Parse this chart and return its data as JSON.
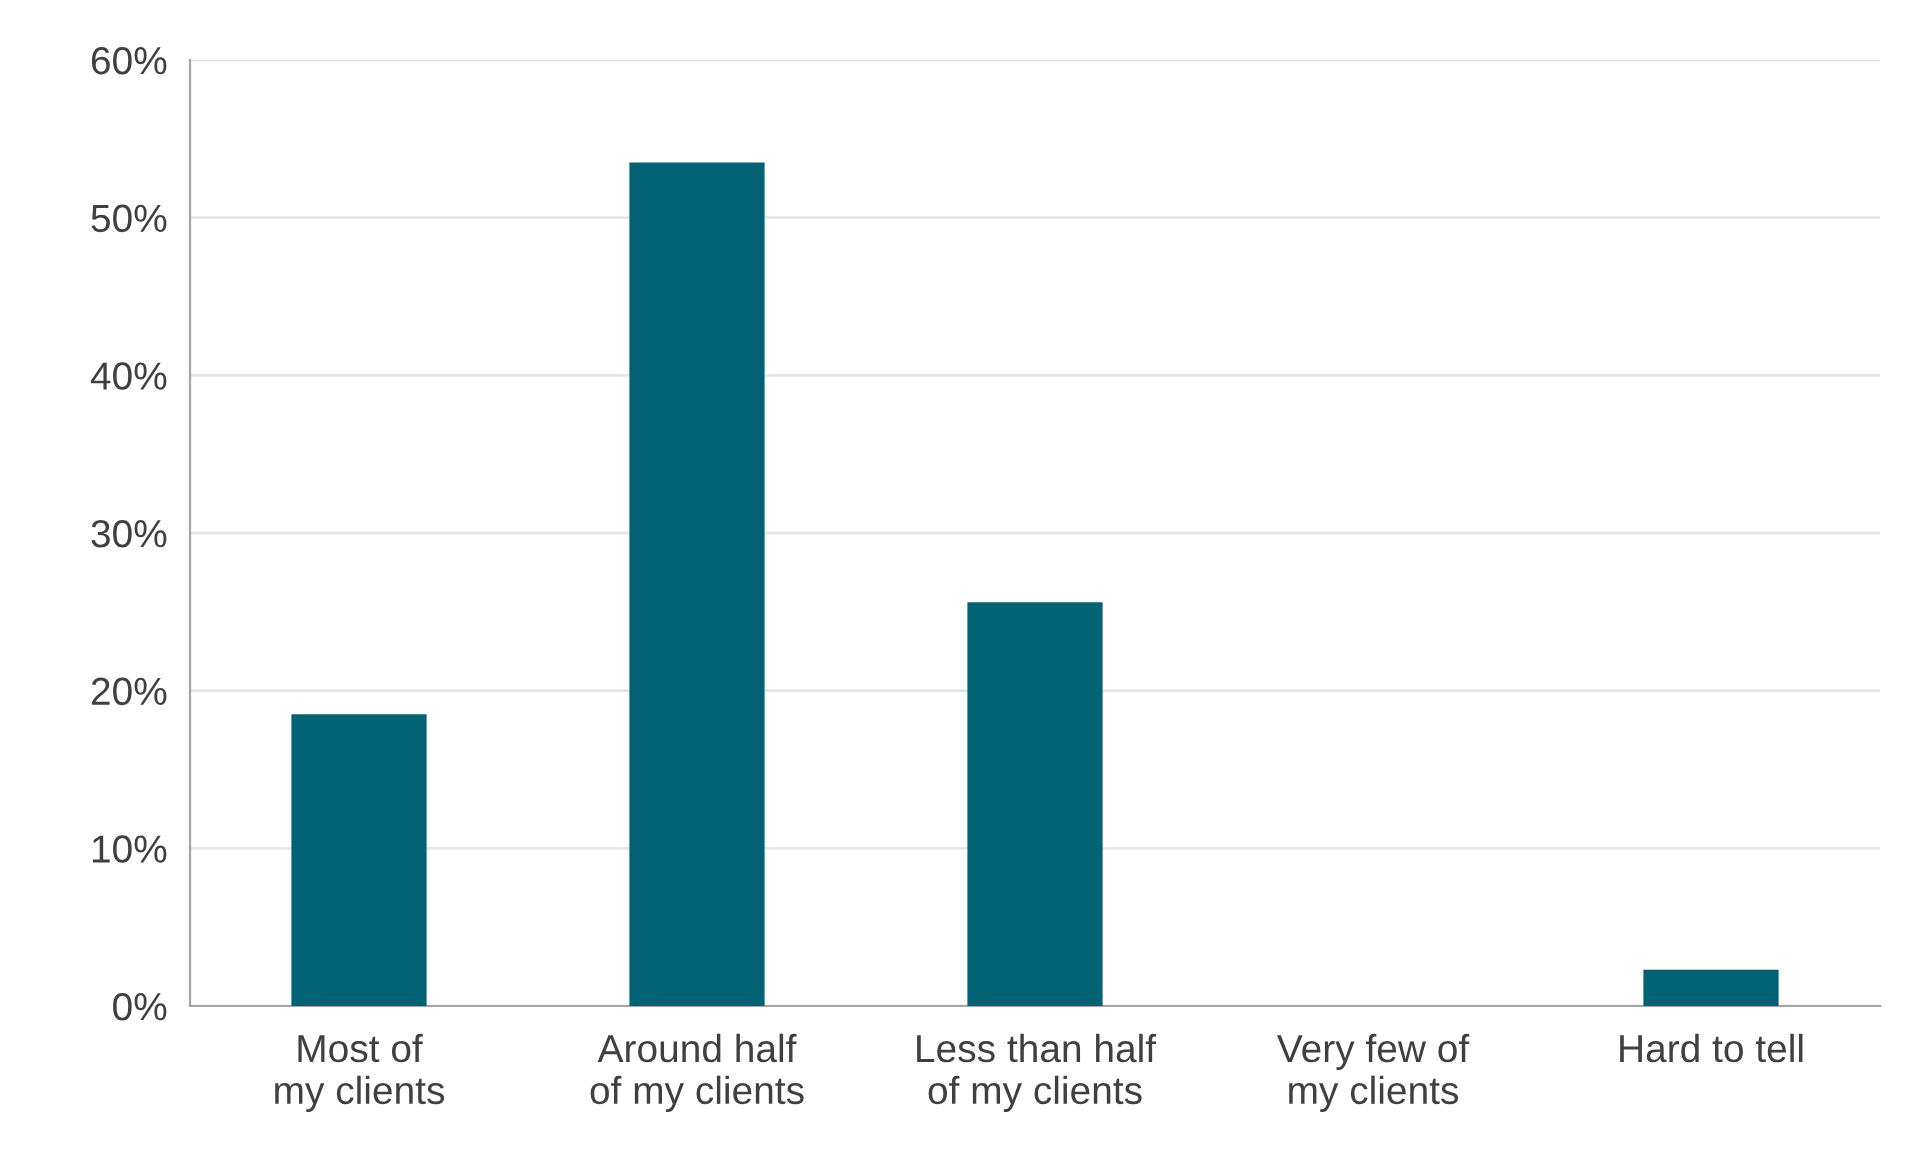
{
  "chart_data": {
    "type": "bar",
    "categories": [
      "Most of my clients",
      "Around half of my clients",
      "Less than half of my clients",
      "Very few of my clients",
      "Hard to tell"
    ],
    "values": [
      18.5,
      53.5,
      25.6,
      0,
      2.3
    ],
    "color": "#006272",
    "ylim": [
      0,
      60
    ],
    "yticks": [
      {
        "value": 0,
        "label": "0%"
      },
      {
        "value": 10,
        "label": "10%"
      },
      {
        "value": 20,
        "label": "20%"
      },
      {
        "value": 30,
        "label": "30%"
      },
      {
        "value": 40,
        "label": "40%"
      },
      {
        "value": 50,
        "label": "50%"
      },
      {
        "value": 60,
        "label": "60%"
      }
    ],
    "grid": "y"
  }
}
